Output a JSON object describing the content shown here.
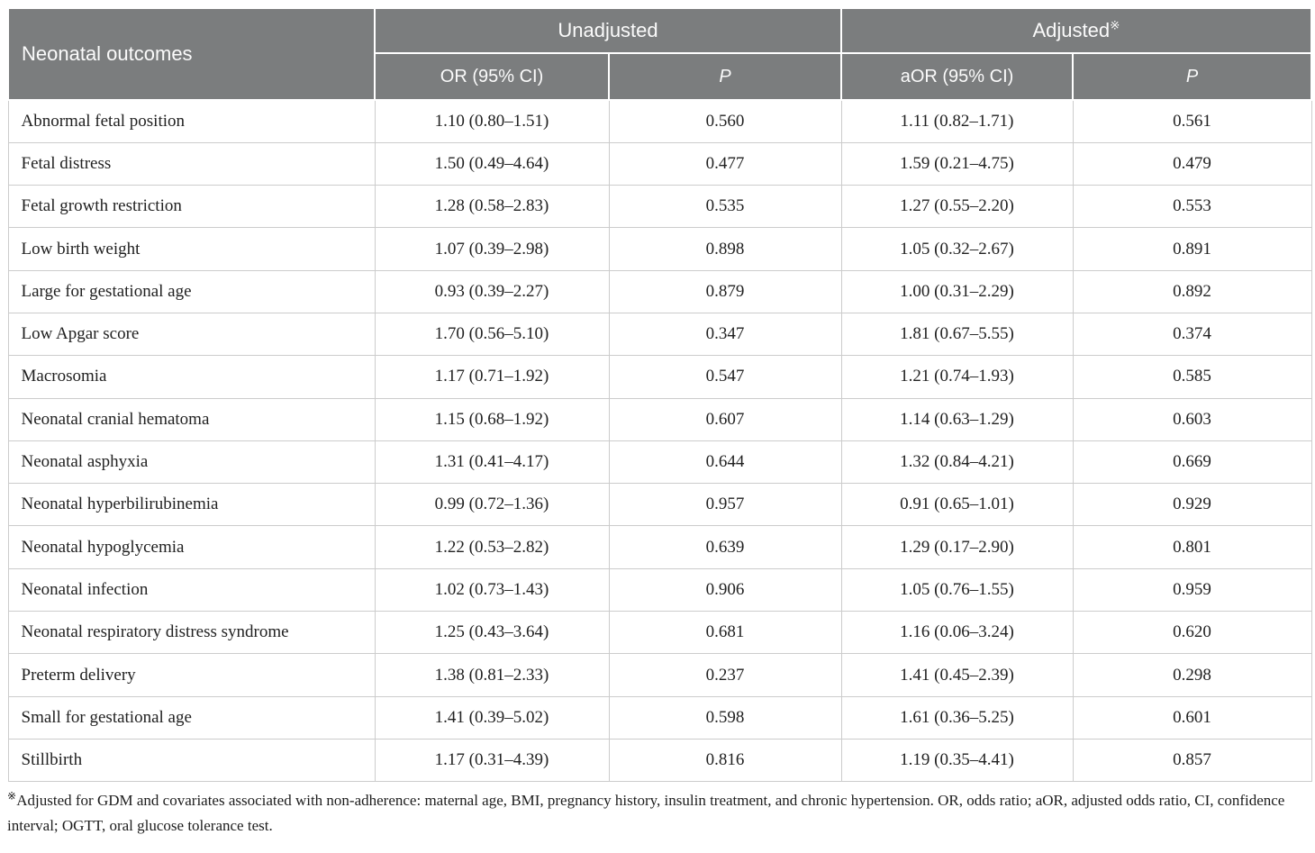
{
  "table": {
    "outcome_header": "Neonatal outcomes",
    "group_headers": [
      {
        "label": "Unadjusted",
        "ref_mark": ""
      },
      {
        "label": "Adjusted",
        "ref_mark": "※"
      }
    ],
    "sub_headers": [
      "OR (95% CI)",
      "P",
      "aOR (95% CI)",
      "P"
    ],
    "rows": [
      {
        "outcome": "Abnormal fetal position",
        "or_ci": "1.10 (0.80–1.51)",
        "p": "0.560",
        "aor_ci": "1.11 (0.82–1.71)",
        "ap": "0.561"
      },
      {
        "outcome": "Fetal distress",
        "or_ci": "1.50 (0.49–4.64)",
        "p": "0.477",
        "aor_ci": "1.59 (0.21–4.75)",
        "ap": "0.479"
      },
      {
        "outcome": "Fetal growth restriction",
        "or_ci": "1.28 (0.58–2.83)",
        "p": "0.535",
        "aor_ci": "1.27 (0.55–2.20)",
        "ap": "0.553"
      },
      {
        "outcome": "Low birth weight",
        "or_ci": "1.07 (0.39–2.98)",
        "p": "0.898",
        "aor_ci": "1.05 (0.32–2.67)",
        "ap": "0.891"
      },
      {
        "outcome": "Large for gestational age",
        "or_ci": "0.93 (0.39–2.27)",
        "p": "0.879",
        "aor_ci": "1.00 (0.31–2.29)",
        "ap": "0.892"
      },
      {
        "outcome": "Low Apgar score",
        "or_ci": "1.70 (0.56–5.10)",
        "p": "0.347",
        "aor_ci": "1.81 (0.67–5.55)",
        "ap": "0.374"
      },
      {
        "outcome": "Macrosomia",
        "or_ci": "1.17 (0.71–1.92)",
        "p": "0.547",
        "aor_ci": "1.21 (0.74–1.93)",
        "ap": "0.585"
      },
      {
        "outcome": "Neonatal cranial hematoma",
        "or_ci": "1.15 (0.68–1.92)",
        "p": "0.607",
        "aor_ci": "1.14 (0.63–1.29)",
        "ap": "0.603"
      },
      {
        "outcome": "Neonatal asphyxia",
        "or_ci": "1.31 (0.41–4.17)",
        "p": "0.644",
        "aor_ci": "1.32 (0.84–4.21)",
        "ap": "0.669"
      },
      {
        "outcome": "Neonatal hyperbilirubinemia",
        "or_ci": "0.99 (0.72–1.36)",
        "p": "0.957",
        "aor_ci": "0.91 (0.65–1.01)",
        "ap": "0.929"
      },
      {
        "outcome": "Neonatal hypoglycemia",
        "or_ci": "1.22 (0.53–2.82)",
        "p": "0.639",
        "aor_ci": "1.29 (0.17–2.90)",
        "ap": "0.801"
      },
      {
        "outcome": "Neonatal infection",
        "or_ci": "1.02 (0.73–1.43)",
        "p": "0.906",
        "aor_ci": "1.05 (0.76–1.55)",
        "ap": "0.959"
      },
      {
        "outcome": "Neonatal respiratory distress syndrome",
        "or_ci": "1.25 (0.43–3.64)",
        "p": "0.681",
        "aor_ci": "1.16 (0.06–3.24)",
        "ap": "0.620"
      },
      {
        "outcome": "Preterm delivery",
        "or_ci": "1.38 (0.81–2.33)",
        "p": "0.237",
        "aor_ci": "1.41 (0.45–2.39)",
        "ap": "0.298"
      },
      {
        "outcome": "Small for gestational age",
        "or_ci": "1.41 (0.39–5.02)",
        "p": "0.598",
        "aor_ci": "1.61 (0.36–5.25)",
        "ap": "0.601"
      },
      {
        "outcome": "Stillbirth",
        "or_ci": "1.17 (0.31–4.39)",
        "p": "0.816",
        "aor_ci": "1.19 (0.35–4.41)",
        "ap": "0.857"
      }
    ]
  },
  "footnote": {
    "ref_mark": "※",
    "text": "Adjusted for GDM and covariates associated with non-adherence: maternal age, BMI, pregnancy history, insulin treatment, and chronic hypertension. OR, odds ratio; aOR, adjusted odds ratio, CI, confidence interval; OGTT, oral glucose tolerance test."
  },
  "colors": {
    "header_bg": "#7b7d7e",
    "header_text": "#fbfbfb",
    "grid_line": "#cccccc",
    "body_text": "#212121"
  }
}
